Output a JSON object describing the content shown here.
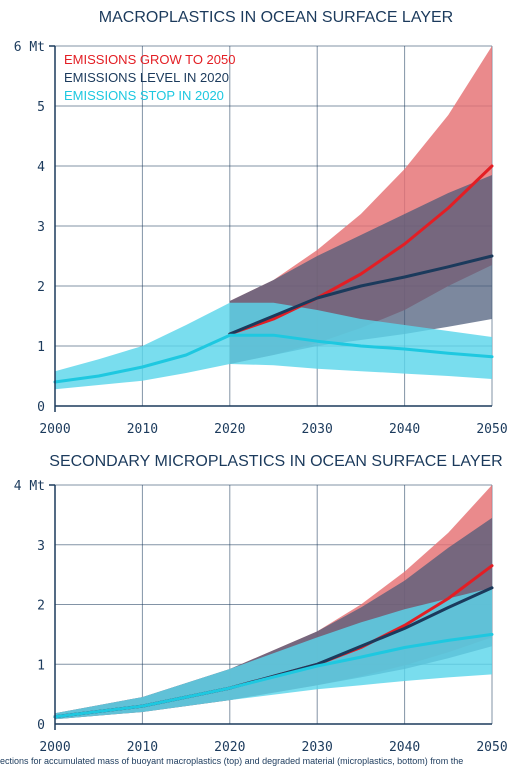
{
  "colors": {
    "grow": "#e31e24",
    "grow_band": "#e57073",
    "level": "#1b3a5c",
    "level_band": "#4a5a78",
    "stop": "#1ec8e0",
    "stop_band": "#5bd6ea",
    "text": "#1b3a5c",
    "grid": "#1b3a5c"
  },
  "caption": "ections for accumulated mass of buoyant macroplastics (top) and degraded material (microplastics, bottom) from the",
  "chart_data": [
    {
      "type": "line",
      "title": "MACROPLASTICS IN OCEAN SURFACE LAYER",
      "xlabel": "",
      "ylabel": "",
      "xlim": [
        2000,
        2050
      ],
      "ylim": [
        0,
        6
      ],
      "x_ticks": [
        "2000",
        "2010",
        "2020",
        "2030",
        "2040",
        "2050"
      ],
      "y_ticks": [
        "0",
        "1",
        "2",
        "3",
        "4",
        "5",
        "6 Mt"
      ],
      "legend": [
        "EMISSIONS GROW TO 2050",
        "EMISSIONS LEVEL IN 2020",
        "EMISSIONS STOP IN 2020"
      ],
      "legend_position": "top-left",
      "grid": true,
      "series": [
        {
          "name": "EMISSIONS GROW TO 2050",
          "key": "grow",
          "x": [
            2020,
            2025,
            2030,
            2035,
            2040,
            2045,
            2050
          ],
          "values": [
            1.2,
            1.45,
            1.8,
            2.2,
            2.7,
            3.3,
            4.0
          ],
          "band": {
            "x": [
              2020,
              2025,
              2030,
              2035,
              2040,
              2045,
              2050
            ],
            "lower": [
              0.7,
              0.85,
              1.05,
              1.3,
              1.6,
              2.0,
              2.35
            ],
            "upper": [
              1.75,
              2.1,
              2.6,
              3.2,
              3.95,
              4.85,
              6.0
            ]
          }
        },
        {
          "name": "EMISSIONS LEVEL IN 2020",
          "key": "level",
          "x": [
            2020,
            2025,
            2030,
            2035,
            2040,
            2045,
            2050
          ],
          "values": [
            1.2,
            1.5,
            1.8,
            2.0,
            2.15,
            2.32,
            2.5
          ],
          "band": {
            "x": [
              2020,
              2025,
              2030,
              2035,
              2040,
              2045,
              2050
            ],
            "lower": [
              0.7,
              0.85,
              1.0,
              1.1,
              1.2,
              1.32,
              1.45
            ],
            "upper": [
              1.75,
              2.1,
              2.5,
              2.85,
              3.2,
              3.55,
              3.85
            ]
          }
        },
        {
          "name": "EMISSIONS STOP IN 2020",
          "key": "stop",
          "x": [
            2000,
            2005,
            2010,
            2015,
            2020,
            2025,
            2030,
            2035,
            2040,
            2045,
            2050
          ],
          "values": [
            0.4,
            0.5,
            0.65,
            0.85,
            1.18,
            1.18,
            1.08,
            1.0,
            0.95,
            0.88,
            0.82
          ],
          "band": {
            "x": [
              2000,
              2005,
              2010,
              2015,
              2020,
              2025,
              2030,
              2035,
              2040,
              2045,
              2050
            ],
            "lower": [
              0.28,
              0.35,
              0.42,
              0.55,
              0.7,
              0.68,
              0.62,
              0.58,
              0.54,
              0.5,
              0.45
            ],
            "upper": [
              0.58,
              0.78,
              1.0,
              1.35,
              1.72,
              1.72,
              1.6,
              1.45,
              1.35,
              1.25,
              1.15
            ]
          }
        }
      ]
    },
    {
      "type": "line",
      "title": "SECONDARY MICROPLASTICS IN OCEAN SURFACE LAYER",
      "xlabel": "",
      "ylabel": "",
      "xlim": [
        2000,
        2050
      ],
      "ylim": [
        0,
        4
      ],
      "x_ticks": [
        "2000",
        "2010",
        "2020",
        "2030",
        "2040",
        "2050"
      ],
      "y_ticks": [
        "0",
        "1",
        "2",
        "3",
        "4 Mt"
      ],
      "grid": true,
      "series": [
        {
          "name": "EMISSIONS GROW TO 2050",
          "key": "grow",
          "x": [
            2000,
            2010,
            2020,
            2030,
            2035,
            2040,
            2045,
            2050
          ],
          "values": [
            0.12,
            0.3,
            0.6,
            1.0,
            1.28,
            1.65,
            2.1,
            2.65
          ],
          "band": {
            "x": [
              2000,
              2010,
              2020,
              2030,
              2035,
              2040,
              2045,
              2050
            ],
            "lower": [
              0.08,
              0.2,
              0.4,
              0.65,
              0.8,
              0.98,
              1.2,
              1.45
            ],
            "upper": [
              0.18,
              0.45,
              0.92,
              1.55,
              2.0,
              2.55,
              3.2,
              4.0
            ]
          }
        },
        {
          "name": "EMISSIONS LEVEL IN 2020",
          "key": "level",
          "x": [
            2000,
            2010,
            2020,
            2030,
            2035,
            2040,
            2045,
            2050
          ],
          "values": [
            0.12,
            0.3,
            0.6,
            1.0,
            1.3,
            1.6,
            1.95,
            2.28
          ],
          "band": {
            "x": [
              2000,
              2010,
              2020,
              2030,
              2035,
              2040,
              2045,
              2050
            ],
            "lower": [
              0.08,
              0.2,
              0.4,
              0.65,
              0.78,
              0.92,
              1.1,
              1.3
            ],
            "upper": [
              0.18,
              0.45,
              0.92,
              1.55,
              1.95,
              2.4,
              2.95,
              3.45
            ]
          }
        },
        {
          "name": "EMISSIONS STOP IN 2020",
          "key": "stop",
          "x": [
            2000,
            2010,
            2020,
            2030,
            2035,
            2040,
            2045,
            2050
          ],
          "values": [
            0.12,
            0.3,
            0.6,
            0.97,
            1.12,
            1.28,
            1.4,
            1.5
          ],
          "band": {
            "x": [
              2000,
              2010,
              2020,
              2030,
              2035,
              2040,
              2045,
              2050
            ],
            "lower": [
              0.08,
              0.2,
              0.4,
              0.58,
              0.65,
              0.72,
              0.78,
              0.83
            ],
            "upper": [
              0.18,
              0.45,
              0.92,
              1.45,
              1.7,
              1.92,
              2.1,
              2.28
            ]
          }
        }
      ]
    }
  ]
}
